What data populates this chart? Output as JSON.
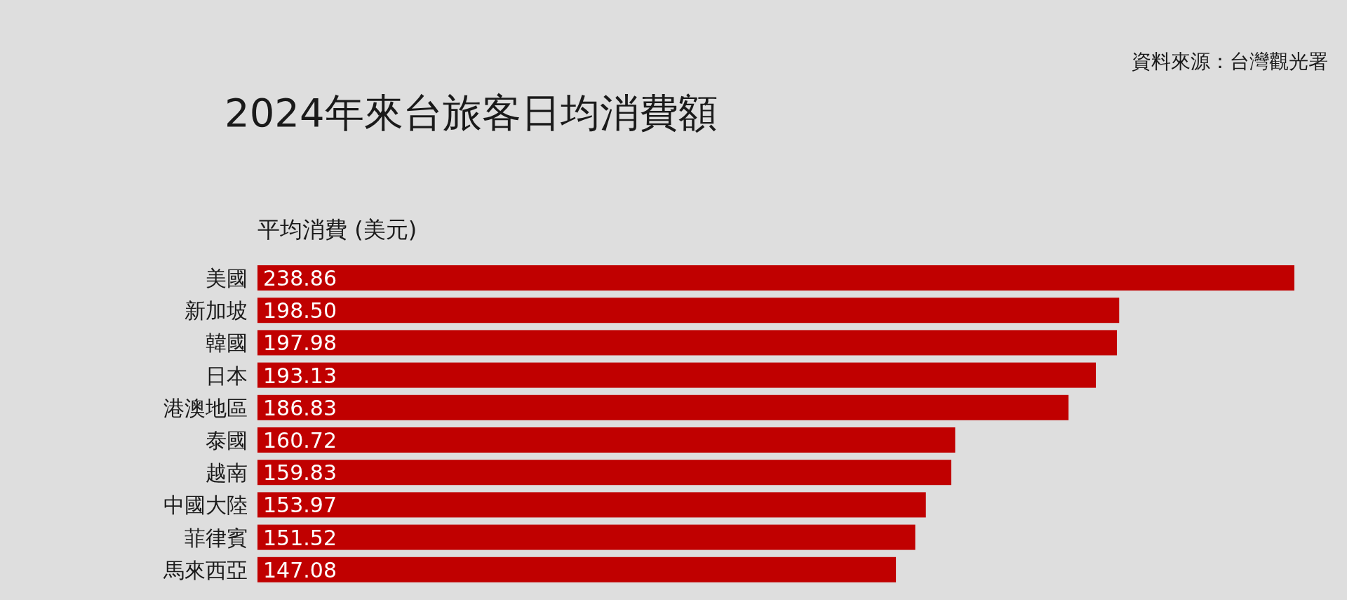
{
  "chart_data": {
    "type": "bar",
    "orientation": "horizontal",
    "title": "2024年來台旅客日均消費額",
    "xlabel": "平均消費 (美元)",
    "categories": [
      "美國",
      "新加坡",
      "韓國",
      "日本",
      "港澳地區",
      "泰國",
      "越南",
      "中國大陸",
      "菲律賓",
      "馬來西亞"
    ],
    "values": [
      238.86,
      198.5,
      197.98,
      193.13,
      186.83,
      160.72,
      159.83,
      153.97,
      151.52,
      147.08
    ],
    "value_labels": [
      "238.86",
      "198.50",
      "197.98",
      "193.13",
      "186.83",
      "160.72",
      "159.83",
      "153.97",
      "151.52",
      "147.08"
    ],
    "color": "#c00000",
    "data_labels": true,
    "annotations": [
      "資料來源：台灣觀光署"
    ]
  }
}
